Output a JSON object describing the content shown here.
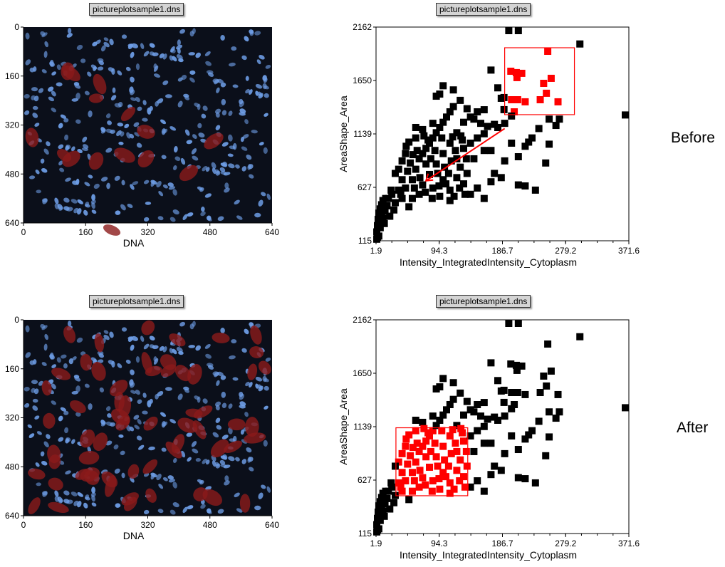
{
  "panels": [
    {
      "label": "Before",
      "image_title": "pictureplotsample1.dns",
      "plot_title": "pictureplotsample1.dns"
    },
    {
      "label": "After",
      "image_title": "pictureplotsample1.dns",
      "plot_title": "pictureplotsample1.dns"
    }
  ],
  "image_axes": {
    "xlabel": "DNA",
    "xticks": [
      "0",
      "160",
      "320",
      "480",
      "640"
    ],
    "yticks": [
      "0",
      "160",
      "320",
      "480",
      "640"
    ]
  },
  "colors": {
    "highlight": "#ff0000",
    "points": "#000000",
    "nuclei": "#6f9fe8",
    "cell_overlay": "#8b1a1a"
  },
  "chart_data": [
    {
      "type": "scatter",
      "title": "pictureplotsample1.dns",
      "xlabel": "Intensity_IntegratedIntensity_Cytoplasm",
      "ylabel": "AreaShape_Area",
      "xlim": [
        1.9,
        371.6
      ],
      "ylim": [
        115,
        2162
      ],
      "xticks": [
        "1.9",
        "94.3",
        "186.7",
        "279.2",
        "371.6"
      ],
      "yticks": [
        "115",
        "627",
        "1139",
        "1650",
        "2162"
      ],
      "gate": {
        "x": [
          190,
          292
        ],
        "y": [
          1323,
          1964
        ]
      },
      "arrow": {
        "from": [
          190,
          1190
        ],
        "to": [
          75,
          690
        ]
      },
      "points": []
    },
    {
      "type": "scatter",
      "title": "pictureplotsample1.dns",
      "xlabel": "Intensity_IntegratedIntensity_Cytoplasm",
      "ylabel": "AreaShape_Area",
      "xlim": [
        1.9,
        371.6
      ],
      "ylim": [
        115,
        2162
      ],
      "xticks": [
        "1.9",
        "94.3",
        "186.7",
        "279.2",
        "371.6"
      ],
      "yticks": [
        "115",
        "627",
        "1139",
        "1650",
        "2162"
      ],
      "gate": {
        "x": [
          31,
          136
        ],
        "y": [
          477,
          1128
        ]
      },
      "points": []
    }
  ],
  "points": [
    [
      253,
      1930
    ],
    [
      199,
      1739
    ],
    [
      207,
      1726
    ],
    [
      215,
      1719
    ],
    [
      208,
      1678
    ],
    [
      258,
      1671
    ],
    [
      247,
      1623
    ],
    [
      251,
      1528
    ],
    [
      242,
      1466
    ],
    [
      268,
      1446
    ],
    [
      189,
      1487
    ],
    [
      200,
      1466
    ],
    [
      209,
      1466
    ],
    [
      220,
      1446
    ],
    [
      189,
      1371
    ],
    [
      204,
      1350
    ],
    [
      196,
      2140
    ],
    [
      210,
      2140
    ],
    [
      300,
      2000
    ],
    [
      371,
      1320
    ],
    [
      3,
      130
    ],
    [
      3,
      200
    ],
    [
      4,
      260
    ],
    [
      5,
      320
    ],
    [
      6,
      380
    ],
    [
      8,
      420
    ],
    [
      10,
      460
    ],
    [
      12,
      500
    ],
    [
      6,
      160
    ],
    [
      8,
      240
    ],
    [
      12,
      330
    ],
    [
      15,
      400
    ],
    [
      18,
      450
    ],
    [
      20,
      520
    ],
    [
      25,
      560
    ],
    [
      30,
      480
    ],
    [
      35,
      600
    ],
    [
      40,
      520
    ],
    [
      45,
      620
    ],
    [
      50,
      440
    ],
    [
      28,
      410
    ],
    [
      22,
      350
    ],
    [
      14,
      280
    ],
    [
      4,
      150
    ],
    [
      7,
      300
    ],
    [
      10,
      380
    ],
    [
      16,
      520
    ],
    [
      24,
      600
    ],
    [
      55,
      700
    ],
    [
      60,
      800
    ],
    [
      65,
      900
    ],
    [
      70,
      950
    ],
    [
      75,
      1000
    ],
    [
      80,
      1050
    ],
    [
      85,
      1100
    ],
    [
      90,
      1150
    ],
    [
      95,
      1200
    ],
    [
      100,
      1250
    ],
    [
      105,
      1300
    ],
    [
      110,
      1350
    ],
    [
      115,
      1400
    ],
    [
      70,
      650
    ],
    [
      80,
      750
    ],
    [
      90,
      850
    ],
    [
      100,
      950
    ],
    [
      110,
      1050
    ],
    [
      120,
      1150
    ],
    [
      130,
      1250
    ],
    [
      140,
      1300
    ],
    [
      150,
      1350
    ],
    [
      60,
      1100
    ],
    [
      70,
      1180
    ],
    [
      85,
      1240
    ],
    [
      95,
      1520
    ],
    [
      115,
      1560
    ],
    [
      125,
      1460
    ],
    [
      135,
      1380
    ],
    [
      145,
      1280
    ],
    [
      155,
      1240
    ],
    [
      165,
      1210
    ],
    [
      175,
      1230
    ],
    [
      120,
      900
    ],
    [
      130,
      1000
    ],
    [
      140,
      1050
    ],
    [
      150,
      1100
    ],
    [
      160,
      980
    ],
    [
      100,
      700
    ],
    [
      110,
      600
    ],
    [
      120,
      720
    ],
    [
      130,
      660
    ],
    [
      140,
      560
    ],
    [
      150,
      620
    ],
    [
      160,
      520
    ],
    [
      170,
      680
    ],
    [
      175,
      760
    ],
    [
      185,
      720
    ],
    [
      190,
      880
    ],
    [
      170,
      980
    ],
    [
      200,
      1050
    ],
    [
      210,
      920
    ],
    [
      220,
      1020
    ],
    [
      225,
      1060
    ],
    [
      230,
      1100
    ],
    [
      240,
      1190
    ],
    [
      250,
      860
    ],
    [
      255,
      1280
    ],
    [
      265,
      1220
    ],
    [
      270,
      1280
    ],
    [
      255,
      1040
    ],
    [
      210,
      650
    ],
    [
      220,
      640
    ],
    [
      235,
      600
    ],
    [
      180,
      1200
    ],
    [
      190,
      1240
    ],
    [
      180,
      1580
    ],
    [
      170,
      1750
    ],
    [
      185,
      1480
    ],
    [
      200,
      1310
    ],
    [
      160,
      1370
    ],
    [
      100,
      1600
    ],
    [
      90,
      1500
    ],
    [
      60,
      1200
    ],
    [
      50,
      1060
    ],
    [
      45,
      950
    ],
    [
      40,
      880
    ],
    [
      35,
      800
    ],
    [
      30,
      760
    ],
    [
      75,
      850
    ],
    [
      85,
      620
    ],
    [
      95,
      540
    ],
    [
      110,
      500
    ],
    [
      65,
      560
    ],
    [
      55,
      520
    ],
    [
      125,
      820
    ],
    [
      135,
      760
    ],
    [
      145,
      900
    ],
    [
      160,
      1140
    ],
    [
      40,
      700
    ],
    [
      48,
      780
    ],
    [
      58,
      620
    ],
    [
      66,
      720
    ],
    [
      74,
      580
    ],
    [
      82,
      900
    ],
    [
      92,
      760
    ],
    [
      102,
      820
    ],
    [
      112,
      880
    ],
    [
      118,
      980
    ],
    [
      128,
      1080
    ],
    [
      132,
      560
    ],
    [
      38,
      560
    ],
    [
      52,
      860
    ],
    [
      62,
      980
    ],
    [
      78,
      1080
    ],
    [
      88,
      980
    ],
    [
      98,
      1100
    ],
    [
      108,
      760
    ],
    [
      124,
      620
    ],
    [
      134,
      900
    ],
    [
      46,
      1020
    ],
    [
      56,
      940
    ],
    [
      104,
      660
    ],
    [
      116,
      540
    ],
    [
      126,
      1120
    ],
    [
      72,
      1120
    ],
    [
      84,
      520
    ],
    [
      94,
      640
    ],
    [
      114,
      1110
    ]
  ]
}
